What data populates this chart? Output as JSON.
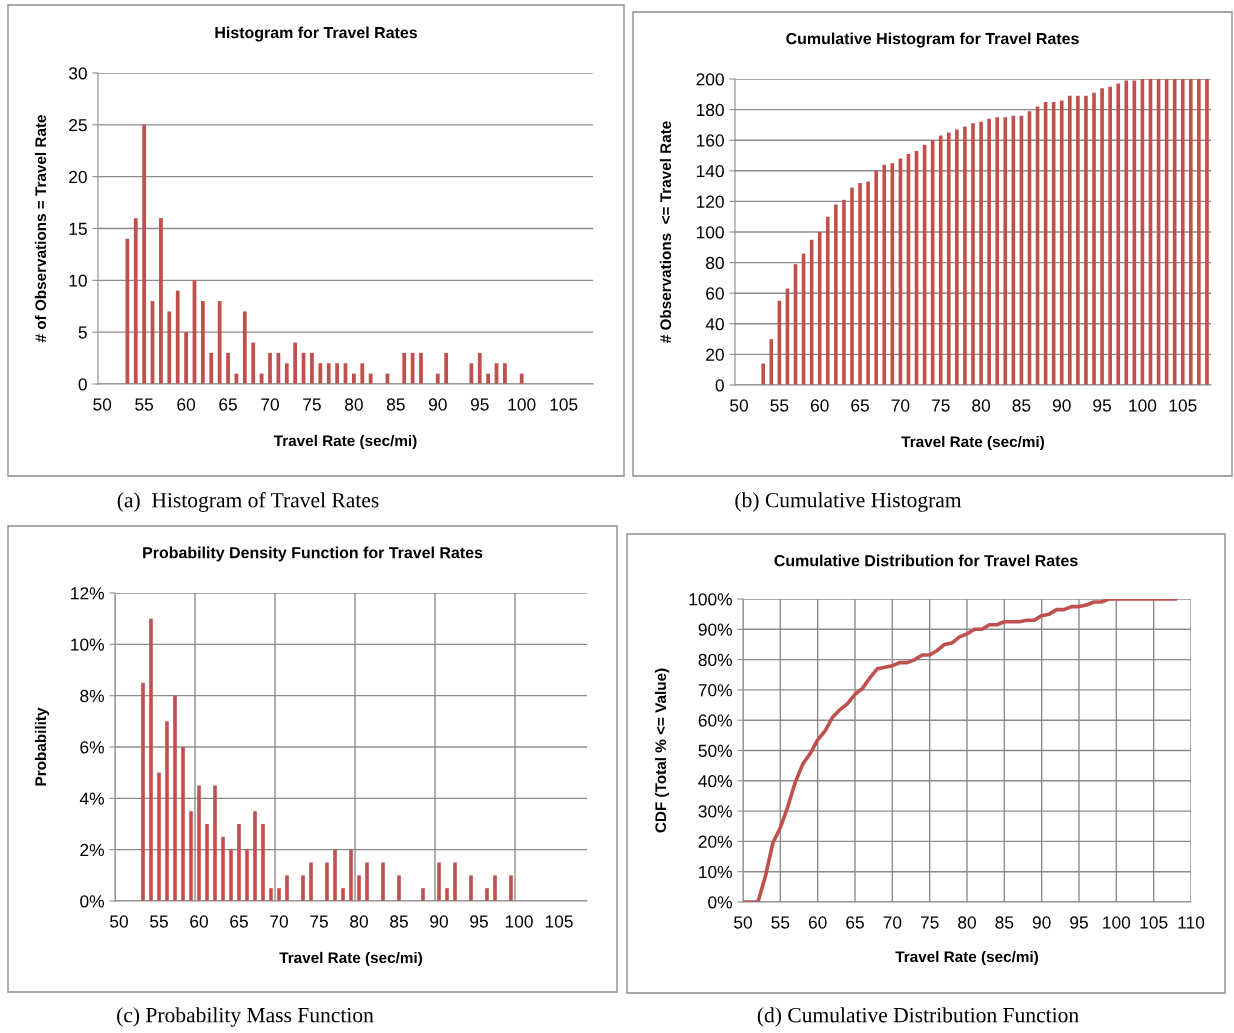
{
  "chart_data": [
    {
      "type": "bar",
      "title": "Histogram for Travel Rates",
      "xlabel": "Travel Rate (sec/mi)",
      "ylabel": "# of Observations = Travel Rate",
      "color": "#c0504d",
      "categories": [
        "50",
        null,
        null,
        null,
        null,
        "55",
        null,
        null,
        null,
        null,
        "60",
        null,
        null,
        null,
        null,
        "65",
        null,
        null,
        null,
        null,
        "70",
        null,
        null,
        null,
        null,
        "75",
        null,
        null,
        null,
        null,
        "80",
        null,
        null,
        null,
        null,
        "85",
        null,
        null,
        null,
        null,
        "90",
        null,
        null,
        null,
        null,
        "95",
        null,
        null,
        null,
        null,
        "100",
        null,
        null,
        null,
        null,
        "105",
        null,
        null,
        null
      ],
      "values": [
        0,
        0,
        0,
        14,
        16,
        25,
        8,
        16,
        7,
        9,
        5,
        10,
        8,
        3,
        8,
        3,
        1,
        7,
        4,
        1,
        3,
        3,
        2,
        4,
        3,
        3,
        2,
        2,
        2,
        2,
        1,
        2,
        1,
        0,
        1,
        0,
        3,
        3,
        3,
        0,
        1,
        3,
        0,
        0,
        2,
        3,
        1,
        2,
        2,
        0,
        1,
        0,
        0,
        0,
        0,
        0,
        0,
        0,
        0
      ],
      "ylim": [
        0,
        30
      ],
      "yticks": [
        0,
        5,
        10,
        15,
        20,
        25,
        30
      ],
      "grid": "y",
      "annotations": [
        "(a)  Histogram of Travel Rates"
      ]
    },
    {
      "type": "bar",
      "title": "Cumulative Histogram for Travel Rates",
      "xlabel": "Travel Rate (sec/mi)",
      "ylabel": "# Observations  <= Travel Rate",
      "color": "#c0504d",
      "categories": [
        "50",
        null,
        null,
        null,
        null,
        "55",
        null,
        null,
        null,
        null,
        "60",
        null,
        null,
        null,
        null,
        "65",
        null,
        null,
        null,
        null,
        "70",
        null,
        null,
        null,
        null,
        "75",
        null,
        null,
        null,
        null,
        "80",
        null,
        null,
        null,
        null,
        "85",
        null,
        null,
        null,
        null,
        "90",
        null,
        null,
        null,
        null,
        "95",
        null,
        null,
        null,
        null,
        "100",
        null,
        null,
        null,
        null,
        "105",
        null,
        null,
        null
      ],
      "values": [
        0,
        0,
        0,
        14,
        30,
        55,
        63,
        79,
        86,
        95,
        100,
        110,
        118,
        121,
        129,
        132,
        133,
        140,
        144,
        145,
        148,
        151,
        153,
        157,
        160,
        163,
        165,
        167,
        169,
        171,
        172,
        174,
        175,
        175,
        176,
        176,
        179,
        182,
        185,
        185,
        186,
        189,
        189,
        189,
        191,
        194,
        195,
        197,
        199,
        199,
        200,
        200,
        200,
        200,
        200,
        200,
        200,
        200,
        200
      ],
      "ylim": [
        0,
        200
      ],
      "yticks": [
        0,
        20,
        40,
        60,
        80,
        100,
        120,
        140,
        160,
        180,
        200
      ],
      "grid": "y",
      "annotations": [
        "(b) Cumulative Histogram"
      ]
    },
    {
      "type": "bar",
      "title": "Probability Density Function for Travel Rates",
      "xlabel": "Travel Rate (sec/mi)",
      "ylabel": "Probability",
      "color": "#c0504d",
      "categories": [
        "50",
        null,
        null,
        null,
        null,
        "55",
        null,
        null,
        null,
        null,
        "60",
        null,
        null,
        null,
        null,
        "65",
        null,
        null,
        null,
        null,
        "70",
        null,
        null,
        null,
        null,
        "75",
        null,
        null,
        null,
        null,
        "80",
        null,
        null,
        null,
        null,
        "85",
        null,
        null,
        null,
        null,
        "90",
        null,
        null,
        null,
        null,
        "95",
        null,
        null,
        null,
        null,
        "100",
        null,
        null,
        null,
        null,
        "105",
        null,
        null,
        null
      ],
      "values": [
        0,
        0,
        0,
        8.5,
        11,
        5,
        7,
        8,
        6,
        3.5,
        4.5,
        3,
        4.5,
        2.5,
        2,
        3,
        2,
        3.5,
        3,
        0.5,
        0.5,
        1,
        0,
        1,
        1.5,
        0,
        1.5,
        2,
        0.5,
        2,
        1,
        1.5,
        0,
        1.5,
        0,
        1,
        0,
        0,
        0.5,
        0,
        1.5,
        0.5,
        1.5,
        0,
        1,
        0,
        0.5,
        1,
        0,
        1,
        0,
        0,
        0,
        0,
        0,
        0,
        0,
        0,
        0
      ],
      "ylim": [
        0,
        12
      ],
      "yticks": [
        {
          "value": 0,
          "label": "0%"
        },
        {
          "value": 2,
          "label": "2%"
        },
        {
          "value": 4,
          "label": "4%"
        },
        {
          "value": 6,
          "label": "6%"
        },
        {
          "value": 8,
          "label": "8%"
        },
        {
          "value": 10,
          "label": "10%"
        },
        {
          "value": 12,
          "label": "12%"
        }
      ],
      "grid": true,
      "annotations": [
        "(c) Probability Mass Function"
      ]
    },
    {
      "type": "line",
      "title": "Cumulative Distribution for Travel Rates",
      "xlabel": "Travel Rate (sec/mi)",
      "ylabel": "CDF (Total % <= Value)",
      "color": "#c0504d",
      "x": [
        50,
        51,
        52,
        53,
        54,
        55,
        56,
        57,
        58,
        59,
        60,
        61,
        62,
        63,
        64,
        65,
        66,
        67,
        68,
        69,
        70,
        71,
        72,
        73,
        74,
        75,
        76,
        77,
        78,
        79,
        80,
        81,
        82,
        83,
        84,
        85,
        86,
        87,
        88,
        89,
        90,
        91,
        92,
        93,
        94,
        95,
        96,
        97,
        98,
        99,
        100,
        101,
        102,
        103,
        104,
        105,
        106,
        107,
        108
      ],
      "values": [
        0,
        0,
        0,
        8.5,
        19.5,
        24.5,
        31.5,
        39.5,
        45.5,
        49,
        53.5,
        56.5,
        61,
        63.5,
        65.5,
        68.5,
        70.5,
        74,
        77,
        77.5,
        78,
        79,
        79,
        80,
        81.5,
        81.5,
        83,
        85,
        85.5,
        87.5,
        88.5,
        90,
        90,
        91.5,
        91.5,
        92.5,
        92.5,
        92.5,
        93,
        93,
        94.5,
        95,
        96.5,
        96.5,
        97.5,
        97.5,
        98,
        99,
        99,
        100,
        100,
        100,
        100,
        100,
        100,
        100,
        100,
        100,
        100
      ],
      "xlim": [
        50,
        110
      ],
      "xticks": [
        50,
        55,
        60,
        65,
        70,
        75,
        80,
        85,
        90,
        95,
        100,
        105,
        110
      ],
      "ylim": [
        0,
        100
      ],
      "yticks": [
        {
          "value": 0,
          "label": "0%"
        },
        {
          "value": 10,
          "label": "10%"
        },
        {
          "value": 20,
          "label": "20%"
        },
        {
          "value": 30,
          "label": "30%"
        },
        {
          "value": 40,
          "label": "40%"
        },
        {
          "value": 50,
          "label": "50%"
        },
        {
          "value": 60,
          "label": "60%"
        },
        {
          "value": 70,
          "label": "70%"
        },
        {
          "value": 80,
          "label": "80%"
        },
        {
          "value": 90,
          "label": "90%"
        },
        {
          "value": 100,
          "label": "100%"
        }
      ],
      "grid": true,
      "annotations": [
        "(d) Cumulative Distribution Function"
      ]
    }
  ]
}
